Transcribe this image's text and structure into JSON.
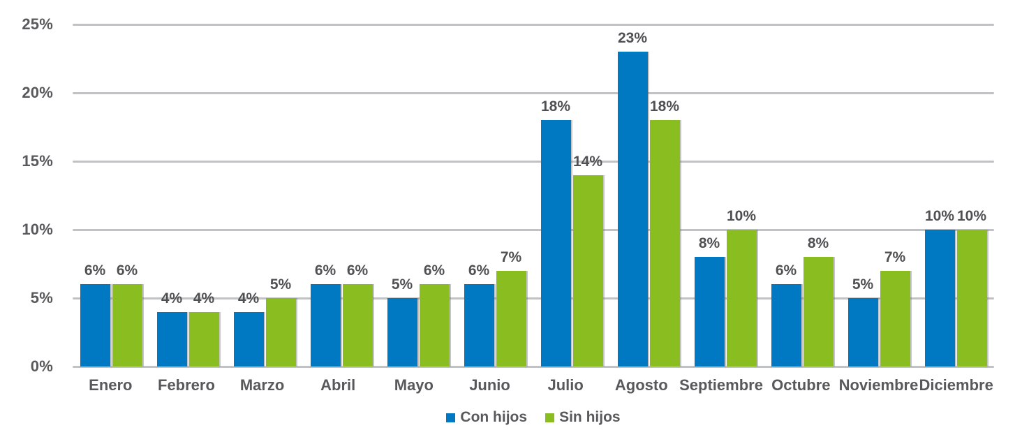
{
  "chart_data": {
    "type": "bar",
    "title": "",
    "xlabel": "",
    "ylabel": "",
    "categories": [
      "Enero",
      "Febrero",
      "Marzo",
      "Abril",
      "Mayo",
      "Junio",
      "Julio",
      "Agosto",
      "Septiembre",
      "Octubre",
      "Noviembre",
      "Diciembre"
    ],
    "series": [
      {
        "name": "Con hijos",
        "color": "#0079C2",
        "values": [
          6,
          4,
          4,
          6,
          5,
          6,
          18,
          23,
          8,
          6,
          5,
          10
        ]
      },
      {
        "name": "Sin hijos",
        "color": "#8ABD20",
        "values": [
          6,
          4,
          5,
          6,
          6,
          7,
          14,
          18,
          10,
          8,
          7,
          10
        ]
      }
    ],
    "value_suffix": "%",
    "data_labels": true,
    "ylim": [
      0,
      25
    ],
    "yticks": [
      0,
      5,
      10,
      15,
      20,
      25
    ],
    "ytick_labels": [
      "0%",
      "5%",
      "10%",
      "15%",
      "20%",
      "25%"
    ],
    "grid": true,
    "legend_position": "bottom"
  },
  "colors": {
    "bar_blue": "#0079C2",
    "bar_green": "#8ABD20",
    "gridline": "#C0C2C4",
    "axis_text": "#58595B",
    "value_text": "#4F5052",
    "background": "#FFFFFF"
  }
}
